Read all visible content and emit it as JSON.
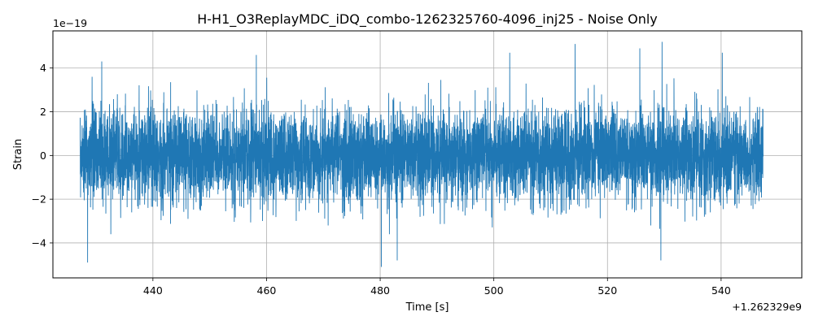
{
  "chart_data": {
    "type": "line",
    "title": "H-H1_O3ReplayMDC_iDQ_combo-1262325760-4096_inj25 - Noise Only",
    "xlabel": "Time [s]",
    "ylabel": "Strain",
    "x_offset_label": "+1.262329e9",
    "y_scale_label": "1e−19",
    "xlim": [
      422.4,
      554.2
    ],
    "ylim": [
      -5.6,
      5.7
    ],
    "x_ticks": [
      440,
      460,
      480,
      500,
      520,
      540
    ],
    "y_ticks": [
      -4,
      -2,
      0,
      2,
      4
    ],
    "x_tick_labels": [
      "440",
      "460",
      "480",
      "500",
      "520",
      "540"
    ],
    "y_tick_labels": [
      "−4",
      "−2",
      "0",
      "2",
      "4"
    ],
    "grid": true,
    "series": [
      {
        "x_range": [
          427.2,
          547.4
        ],
        "color": "#1f77b4",
        "description_values": {
          "typical_band": [
            -1.8,
            1.8
          ],
          "peaks": [
            {
              "x": 428.5,
              "y": -4.9
            },
            {
              "x": 431.0,
              "y": 4.3
            },
            {
              "x": 458.2,
              "y": 4.6
            },
            {
              "x": 480.2,
              "y": -5.1
            },
            {
              "x": 483.0,
              "y": -4.8
            },
            {
              "x": 502.8,
              "y": 4.7
            },
            {
              "x": 514.3,
              "y": 5.1
            },
            {
              "x": 525.7,
              "y": 4.9
            },
            {
              "x": 529.4,
              "y": -4.8
            },
            {
              "x": 529.6,
              "y": 5.2
            },
            {
              "x": 540.2,
              "y": 4.7
            }
          ]
        }
      }
    ]
  }
}
